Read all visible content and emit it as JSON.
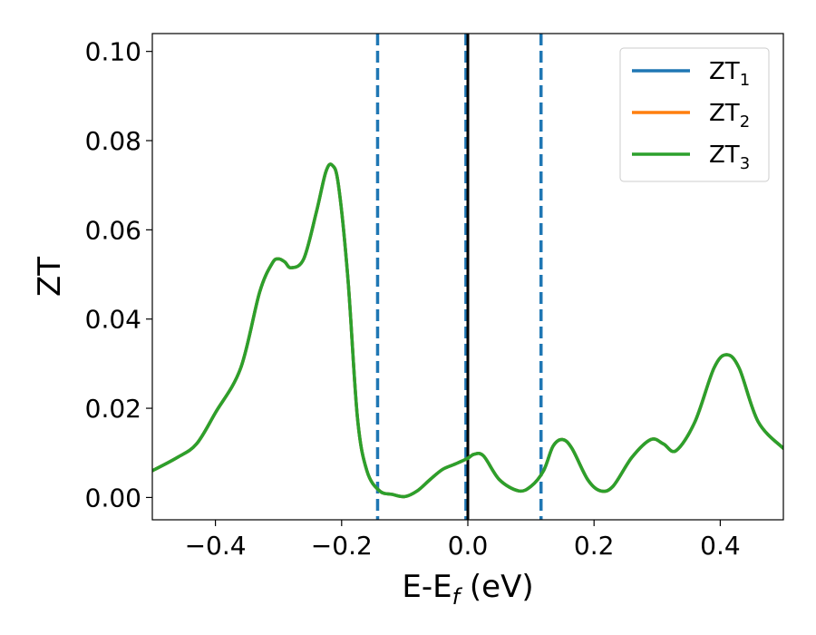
{
  "chart_data": {
    "type": "line",
    "xlabel": {
      "main": "E-E",
      "sub": "f",
      "unit": " (eV)"
    },
    "ylabel": "ZT",
    "xlim": [
      -0.5,
      0.5
    ],
    "ylim": [
      -0.005,
      0.104
    ],
    "xticks": [
      -0.4,
      -0.2,
      0.0,
      0.2,
      0.4
    ],
    "xtick_labels": [
      "−0.4",
      "−0.2",
      "0.0",
      "0.2",
      "0.4"
    ],
    "yticks": [
      0.0,
      0.02,
      0.04,
      0.06,
      0.08,
      0.1
    ],
    "ytick_labels": [
      "0.00",
      "0.02",
      "0.04",
      "0.06",
      "0.08",
      "0.10"
    ],
    "grid": false,
    "legend_position": "top-right",
    "vertical_lines": [
      {
        "x": -0.143,
        "style": "dashed",
        "color": "#1f77b4"
      },
      {
        "x": -0.003,
        "style": "dashed",
        "color": "#1f77b4"
      },
      {
        "x": 0.0,
        "style": "solid",
        "color": "#000000"
      },
      {
        "x": 0.116,
        "style": "dashed",
        "color": "#1f77b4"
      }
    ],
    "series": [
      {
        "name": "ZT",
        "name_sub": "1",
        "color": "#1f77b4",
        "x": [
          -0.5,
          -0.46,
          -0.43,
          -0.4,
          -0.36,
          -0.33,
          -0.31,
          -0.3,
          -0.29,
          -0.28,
          -0.26,
          -0.24,
          -0.225,
          -0.215,
          -0.205,
          -0.19,
          -0.175,
          -0.16,
          -0.14,
          -0.12,
          -0.1,
          -0.08,
          -0.06,
          -0.04,
          -0.02,
          0.0,
          0.01,
          0.025,
          0.05,
          0.08,
          0.1,
          0.12,
          0.135,
          0.15,
          0.165,
          0.19,
          0.21,
          0.23,
          0.26,
          0.29,
          0.31,
          0.33,
          0.36,
          0.39,
          0.41,
          0.43,
          0.46,
          0.5
        ],
        "y": [
          0.006,
          0.009,
          0.012,
          0.019,
          0.029,
          0.046,
          0.0525,
          0.0535,
          0.0528,
          0.0515,
          0.0535,
          0.064,
          0.073,
          0.0745,
          0.07,
          0.049,
          0.018,
          0.006,
          0.0015,
          0.0007,
          0.0002,
          0.0015,
          0.004,
          0.0063,
          0.0075,
          0.0088,
          0.0097,
          0.0093,
          0.004,
          0.0015,
          0.0025,
          0.006,
          0.0115,
          0.013,
          0.011,
          0.004,
          0.0015,
          0.0025,
          0.009,
          0.013,
          0.012,
          0.0105,
          0.017,
          0.029,
          0.032,
          0.029,
          0.017,
          0.011
        ]
      },
      {
        "name": "ZT",
        "name_sub": "2",
        "color": "#ff7f0e",
        "x": [
          -0.5,
          -0.46,
          -0.43,
          -0.4,
          -0.36,
          -0.33,
          -0.31,
          -0.3,
          -0.29,
          -0.28,
          -0.26,
          -0.24,
          -0.225,
          -0.215,
          -0.205,
          -0.19,
          -0.175,
          -0.16,
          -0.14,
          -0.12,
          -0.1,
          -0.08,
          -0.06,
          -0.04,
          -0.02,
          0.0,
          0.01,
          0.025,
          0.05,
          0.08,
          0.1,
          0.12,
          0.135,
          0.15,
          0.165,
          0.19,
          0.21,
          0.23,
          0.26,
          0.29,
          0.31,
          0.33,
          0.36,
          0.39,
          0.41,
          0.43,
          0.46,
          0.5
        ],
        "y": [
          0.006,
          0.009,
          0.012,
          0.019,
          0.029,
          0.046,
          0.0525,
          0.0535,
          0.0528,
          0.0515,
          0.0535,
          0.064,
          0.073,
          0.0745,
          0.07,
          0.049,
          0.018,
          0.006,
          0.0015,
          0.0007,
          0.0002,
          0.0015,
          0.004,
          0.0063,
          0.0075,
          0.0088,
          0.0097,
          0.0093,
          0.004,
          0.0015,
          0.0025,
          0.006,
          0.0115,
          0.013,
          0.011,
          0.004,
          0.0015,
          0.0025,
          0.009,
          0.013,
          0.012,
          0.0105,
          0.017,
          0.029,
          0.032,
          0.029,
          0.017,
          0.011
        ]
      },
      {
        "name": "ZT",
        "name_sub": "3",
        "color": "#2ca02c",
        "x": [
          -0.5,
          -0.46,
          -0.43,
          -0.4,
          -0.36,
          -0.33,
          -0.31,
          -0.3,
          -0.29,
          -0.28,
          -0.26,
          -0.24,
          -0.225,
          -0.215,
          -0.205,
          -0.19,
          -0.175,
          -0.16,
          -0.14,
          -0.12,
          -0.1,
          -0.08,
          -0.06,
          -0.04,
          -0.02,
          0.0,
          0.01,
          0.025,
          0.05,
          0.08,
          0.1,
          0.12,
          0.135,
          0.15,
          0.165,
          0.19,
          0.21,
          0.23,
          0.26,
          0.29,
          0.31,
          0.33,
          0.36,
          0.39,
          0.41,
          0.43,
          0.46,
          0.5
        ],
        "y": [
          0.006,
          0.009,
          0.012,
          0.019,
          0.029,
          0.046,
          0.0525,
          0.0535,
          0.0528,
          0.0515,
          0.0535,
          0.064,
          0.073,
          0.0745,
          0.07,
          0.049,
          0.018,
          0.006,
          0.0015,
          0.0007,
          0.0002,
          0.0015,
          0.004,
          0.0063,
          0.0075,
          0.0088,
          0.0097,
          0.0093,
          0.004,
          0.0015,
          0.0025,
          0.006,
          0.0115,
          0.013,
          0.011,
          0.004,
          0.0015,
          0.0025,
          0.009,
          0.013,
          0.012,
          0.0105,
          0.017,
          0.029,
          0.032,
          0.029,
          0.017,
          0.011
        ]
      }
    ]
  }
}
